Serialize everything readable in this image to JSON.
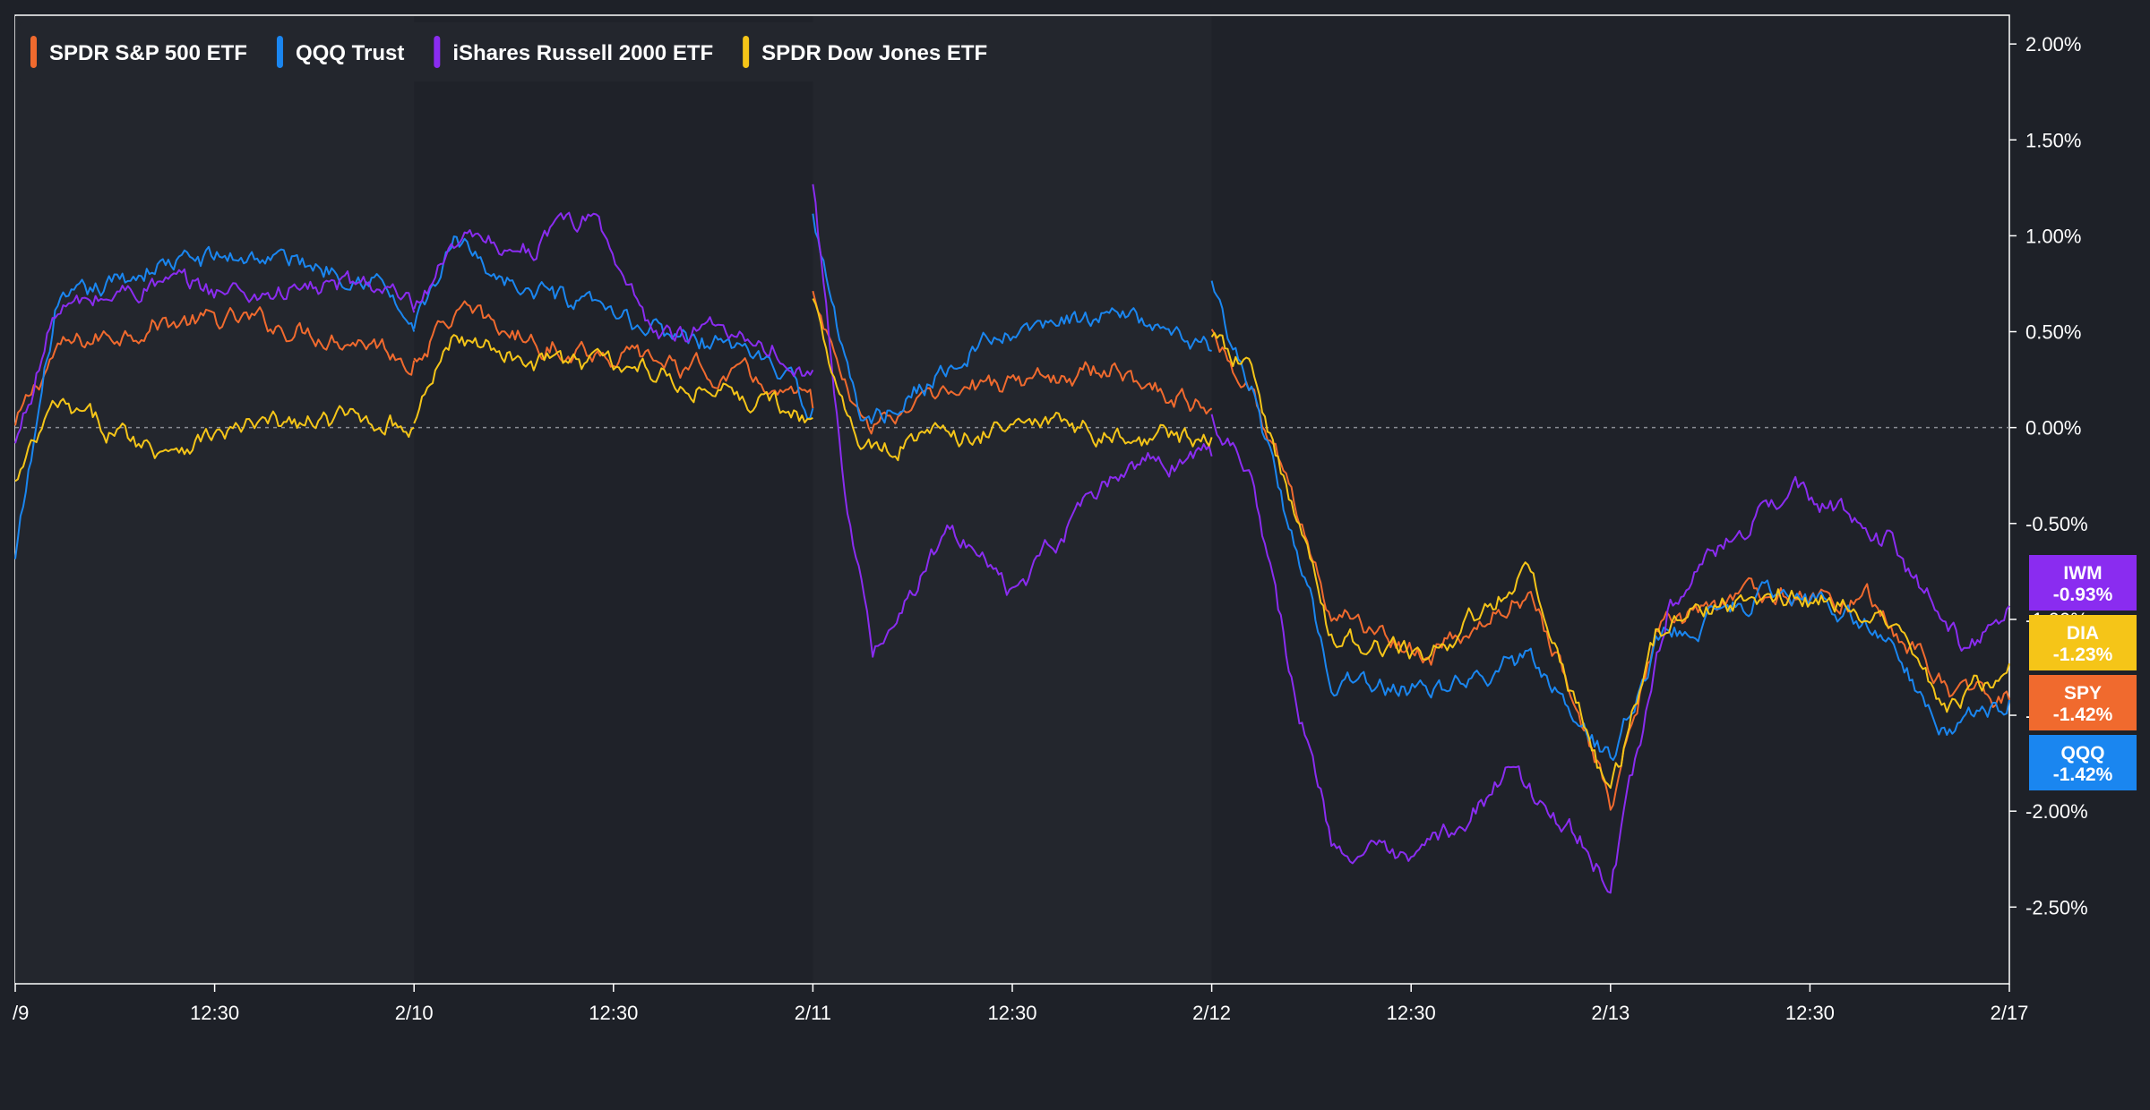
{
  "chart_data": {
    "type": "line",
    "title": "",
    "xlabel": "",
    "ylabel": "",
    "x_ticks": [
      "/9",
      "12:30",
      "2/10",
      "12:30",
      "2/11",
      "12:30",
      "2/12",
      "12:30",
      "2/13",
      "12:30",
      "2/17"
    ],
    "y_ticks": [
      "2.00%",
      "1.50%",
      "1.00%",
      "0.50%",
      "0.00%",
      "-0.50%",
      "-1.00%",
      "-1.50%",
      "-2.00%",
      "-2.50%"
    ],
    "ylim": [
      -2.9,
      2.15
    ],
    "grid": false,
    "zero_line": true,
    "legend_position": "top-left",
    "series": [
      {
        "name": "SPDR S&P 500 ETF",
        "ticker": "SPY",
        "color": "#f06a2e",
        "last_label": "-1.42%",
        "days": [
          {
            "x": [
              0,
              0.1,
              0.35,
              0.6,
              0.9,
              1.0
            ],
            "y": [
              0.0,
              0.4,
              0.55,
              0.55,
              0.45,
              0.35
            ]
          },
          {
            "x": [
              1.0,
              1.1,
              1.3,
              1.6,
              1.85,
              2.0
            ],
            "y": [
              0.35,
              0.6,
              0.45,
              0.35,
              0.25,
              0.1
            ]
          },
          {
            "x": [
              2.0,
              2.12,
              2.4,
              2.55,
              2.75,
              3.0
            ],
            "y": [
              0.7,
              0.0,
              0.2,
              0.25,
              0.3,
              0.1
            ]
          },
          {
            "x": [
              3.0,
              3.1,
              3.3,
              3.55,
              3.8,
              4.0,
              4.12,
              4.4,
              4.65,
              4.85,
              5.0
            ],
            "y": [
              0.5,
              0.2,
              -0.95,
              -1.2,
              -0.85,
              -1.95,
              -1.05,
              -0.85,
              -0.9,
              -1.35,
              -1.42
            ]
          }
        ]
      },
      {
        "name": "QQQ Trust",
        "ticker": "QQQ",
        "color": "#1a86f0",
        "last_label": "-1.42%",
        "days": [
          {
            "x": [
              0,
              0.1,
              0.35,
              0.6,
              0.9,
              1.0
            ],
            "y": [
              -0.7,
              0.6,
              0.85,
              0.9,
              0.8,
              0.5
            ]
          },
          {
            "x": [
              1.0,
              1.1,
              1.3,
              1.6,
              1.85,
              2.0
            ],
            "y": [
              0.5,
              0.95,
              0.7,
              0.5,
              0.4,
              0.1
            ]
          },
          {
            "x": [
              2.0,
              2.12,
              2.4,
              2.55,
              2.75,
              3.0
            ],
            "y": [
              1.1,
              0.0,
              0.4,
              0.5,
              0.6,
              0.4
            ]
          },
          {
            "x": [
              3.0,
              3.1,
              3.3,
              3.55,
              3.8,
              4.0,
              4.12,
              4.4,
              4.65,
              4.85,
              5.0
            ],
            "y": [
              0.75,
              0.2,
              -1.3,
              -1.4,
              -1.2,
              -1.75,
              -1.1,
              -0.85,
              -1.0,
              -1.6,
              -1.42
            ]
          }
        ]
      },
      {
        "name": "iShares Russell 2000 ETF",
        "ticker": "IWM",
        "color": "#8a2cf0",
        "last_label": "-0.93%",
        "days": [
          {
            "x": [
              0,
              0.1,
              0.35,
              0.6,
              0.9,
              1.0
            ],
            "y": [
              -0.1,
              0.6,
              0.75,
              0.7,
              0.75,
              0.6
            ]
          },
          {
            "x": [
              1.0,
              1.1,
              1.3,
              1.45,
              1.6,
              1.85,
              2.0
            ],
            "y": [
              0.6,
              0.95,
              0.95,
              1.1,
              0.5,
              0.5,
              0.3
            ]
          },
          {
            "x": [
              2.0,
              2.08,
              2.15,
              2.35,
              2.5,
              2.65,
              2.8,
              3.0
            ],
            "y": [
              1.25,
              -0.3,
              -1.15,
              -0.5,
              -0.9,
              -0.5,
              -0.2,
              -0.15
            ]
          },
          {
            "x": [
              3.0,
              3.1,
              3.2,
              3.3,
              3.5,
              3.75,
              3.95,
              4.0,
              4.15,
              4.45,
              4.7,
              4.9,
              5.0
            ],
            "y": [
              0.05,
              -0.2,
              -1.3,
              -2.15,
              -2.3,
              -1.8,
              -2.2,
              -2.4,
              -0.9,
              -0.3,
              -0.6,
              -1.2,
              -0.93
            ]
          }
        ]
      },
      {
        "name": "SPDR Dow Jones ETF",
        "ticker": "DIA",
        "color": "#f5c518",
        "last_label": "-1.23%",
        "days": [
          {
            "x": [
              0,
              0.1,
              0.35,
              0.6,
              0.9,
              1.0
            ],
            "y": [
              -0.3,
              0.1,
              -0.1,
              0.0,
              0.05,
              0.0
            ]
          },
          {
            "x": [
              1.0,
              1.1,
              1.3,
              1.6,
              1.85,
              2.0
            ],
            "y": [
              0.0,
              0.5,
              0.35,
              0.3,
              0.15,
              0.05
            ]
          },
          {
            "x": [
              2.0,
              2.12,
              2.4,
              2.55,
              2.75,
              3.0
            ],
            "y": [
              0.65,
              -0.1,
              -0.05,
              0.05,
              -0.05,
              -0.05
            ]
          },
          {
            "x": [
              3.0,
              3.1,
              3.3,
              3.55,
              3.8,
              4.0,
              4.12,
              4.4,
              4.65,
              4.85,
              5.0
            ],
            "y": [
              0.45,
              0.3,
              -1.1,
              -1.2,
              -0.75,
              -1.95,
              -1.05,
              -0.85,
              -0.95,
              -1.45,
              -1.23
            ]
          }
        ]
      }
    ]
  }
}
